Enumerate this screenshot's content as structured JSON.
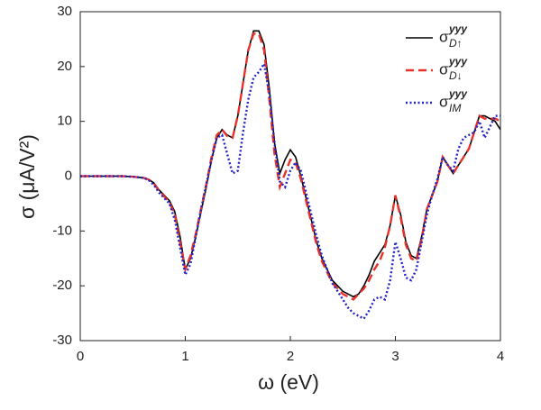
{
  "chart_data": {
    "type": "line",
    "x_label": "ω (eV)",
    "y_label": "σ (μA/V²)",
    "x": [
      0,
      0.1,
      0.2,
      0.3,
      0.4,
      0.5,
      0.6,
      0.65,
      0.7,
      0.75,
      0.8,
      0.85,
      0.9,
      0.95,
      1.0,
      1.05,
      1.1,
      1.15,
      1.2,
      1.25,
      1.3,
      1.35,
      1.4,
      1.45,
      1.5,
      1.55,
      1.6,
      1.65,
      1.7,
      1.75,
      1.8,
      1.85,
      1.9,
      1.95,
      2.0,
      2.05,
      2.1,
      2.15,
      2.2,
      2.25,
      2.3,
      2.35,
      2.4,
      2.45,
      2.5,
      2.55,
      2.6,
      2.65,
      2.7,
      2.75,
      2.8,
      2.85,
      2.9,
      2.95,
      3.0,
      3.05,
      3.1,
      3.15,
      3.2,
      3.25,
      3.3,
      3.35,
      3.4,
      3.45,
      3.5,
      3.55,
      3.6,
      3.65,
      3.7,
      3.75,
      3.8,
      3.85,
      3.9,
      3.95,
      4.0
    ],
    "series": [
      {
        "name": "σ",
        "name_sup": "yyy",
        "name_sub": "D↑",
        "color": "#000000",
        "dash": "solid",
        "values": [
          0,
          0,
          0,
          0,
          0,
          -0.1,
          -0.3,
          -0.6,
          -1.2,
          -2.5,
          -3.5,
          -4.5,
          -6.5,
          -11,
          -17,
          -15,
          -11,
          -6.5,
          -2,
          3,
          7,
          8.5,
          7.5,
          7,
          11,
          17,
          23,
          26.5,
          26.5,
          24,
          16,
          6,
          0.5,
          3,
          4.8,
          3.5,
          0,
          -4,
          -8,
          -12,
          -15,
          -17,
          -19,
          -20,
          -21,
          -21.5,
          -22,
          -21.5,
          -20,
          -18,
          -15.5,
          -14,
          -12.5,
          -9,
          -3.5,
          -7,
          -12,
          -14.5,
          -15,
          -11,
          -6,
          -3.5,
          -1,
          3.5,
          2,
          0.5,
          2,
          3.5,
          5,
          8,
          11,
          11,
          10.5,
          10,
          8.5
        ]
      },
      {
        "name": "σ",
        "name_sup": "yyy",
        "name_sub": "D↓",
        "color": "#e8312a",
        "dash": "dashed",
        "values": [
          0,
          0,
          0,
          0,
          0,
          -0.1,
          -0.3,
          -0.6,
          -1.3,
          -2.7,
          -3.7,
          -4.8,
          -7,
          -12,
          -17,
          -14.5,
          -10.5,
          -6,
          -1.5,
          3.5,
          7.5,
          8.5,
          7.3,
          7,
          11,
          17,
          23,
          26,
          26,
          23,
          14,
          4,
          -2,
          0.5,
          3,
          2.5,
          -0.5,
          -4.5,
          -8.5,
          -12.5,
          -15.5,
          -17.5,
          -19.5,
          -20.5,
          -21.5,
          -22,
          -22.5,
          -21.5,
          -20.5,
          -19,
          -17,
          -15.5,
          -13,
          -9,
          -3.5,
          -7.5,
          -12.5,
          -15,
          -15.5,
          -11.5,
          -6,
          -3.5,
          -1,
          3.5,
          2,
          0.5,
          2,
          3.5,
          5,
          8,
          11,
          10.5,
          10.5,
          10.5,
          10
        ]
      },
      {
        "name": "σ",
        "name_sup": "yyy",
        "name_sub": "IM",
        "color": "#2323c8",
        "dash": "dotted",
        "values": [
          0,
          0,
          0,
          0,
          0,
          -0.1,
          -0.3,
          -0.7,
          -1.6,
          -3,
          -4,
          -5,
          -8,
          -13,
          -18,
          -16,
          -11,
          -6,
          -1.5,
          3,
          7,
          7.5,
          4,
          0.5,
          1,
          8,
          14,
          18,
          19,
          20.5,
          15,
          6,
          -1,
          -2,
          1,
          2.5,
          1,
          -3,
          -7,
          -11,
          -14.5,
          -17,
          -19.5,
          -21,
          -22.5,
          -24,
          -25,
          -25.5,
          -26,
          -24.5,
          -22.5,
          -22,
          -22.5,
          -19,
          -12,
          -15,
          -18.5,
          -19,
          -17,
          -12,
          -7,
          -3.5,
          -0.5,
          3.5,
          2,
          1,
          5,
          7,
          7.5,
          8,
          10,
          7,
          9,
          11,
          11
        ]
      }
    ],
    "xlim": [
      0,
      4
    ],
    "xticks": [
      0,
      1,
      2,
      3,
      4
    ],
    "ylim": [
      -30,
      30
    ],
    "yticks": [
      -30,
      -20,
      -10,
      0,
      10,
      20,
      30
    ],
    "grid": false,
    "legend": "top-right"
  }
}
